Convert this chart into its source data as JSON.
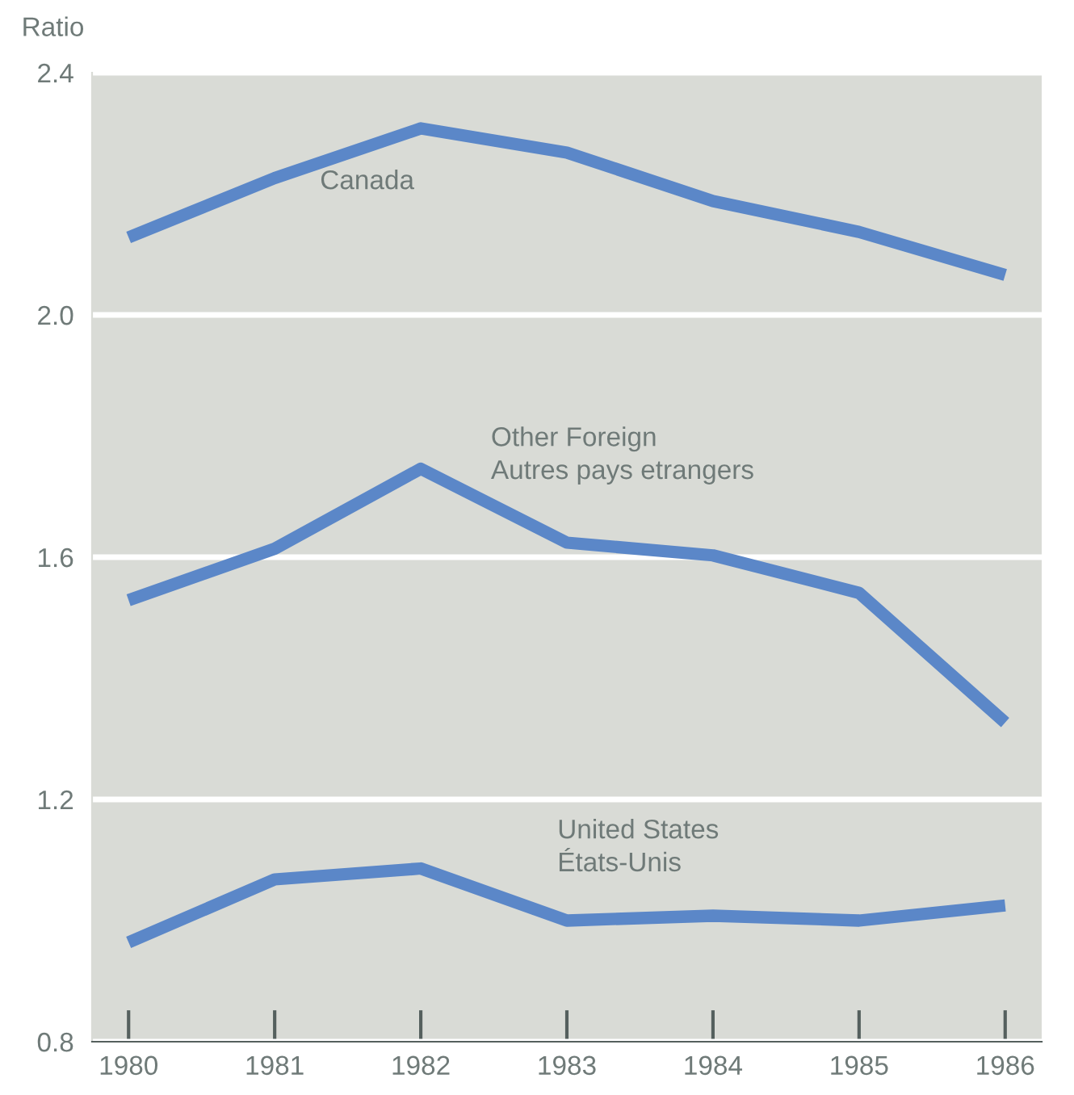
{
  "chart_data": {
    "type": "line",
    "ylabel": "Ratio",
    "x": [
      1980,
      1981,
      1982,
      1983,
      1984,
      1985,
      1986
    ],
    "xlim": [
      1979.75,
      1986.25
    ],
    "xticks": [
      1980,
      1981,
      1982,
      1983,
      1984,
      1985,
      1986
    ],
    "ylim": [
      0.8,
      2.4
    ],
    "yticks": [
      0.8,
      1.2,
      1.6,
      {
        "value": 2,
        "label": "2.0"
      },
      2.4
    ],
    "grid": "y",
    "legend": false,
    "marker": "none",
    "line_style": "solid",
    "series": [
      {
        "name": "Canada",
        "color": "#5b87c8",
        "values": [
          2.128,
          2.226,
          2.308,
          2.268,
          2.188,
          2.137,
          2.066
        ]
      },
      {
        "name": "Other Foreign\nAutres pays etrangers",
        "color": "#5b87c8",
        "values": [
          1.529,
          1.614,
          1.746,
          1.624,
          1.603,
          1.541,
          1.327
        ]
      },
      {
        "name": "United States\nÉtats-Unis",
        "color": "#5b87c8",
        "values": [
          0.964,
          1.068,
          1.086,
          1.0,
          1.008,
          1.0,
          1.025
        ]
      }
    ]
  }
}
